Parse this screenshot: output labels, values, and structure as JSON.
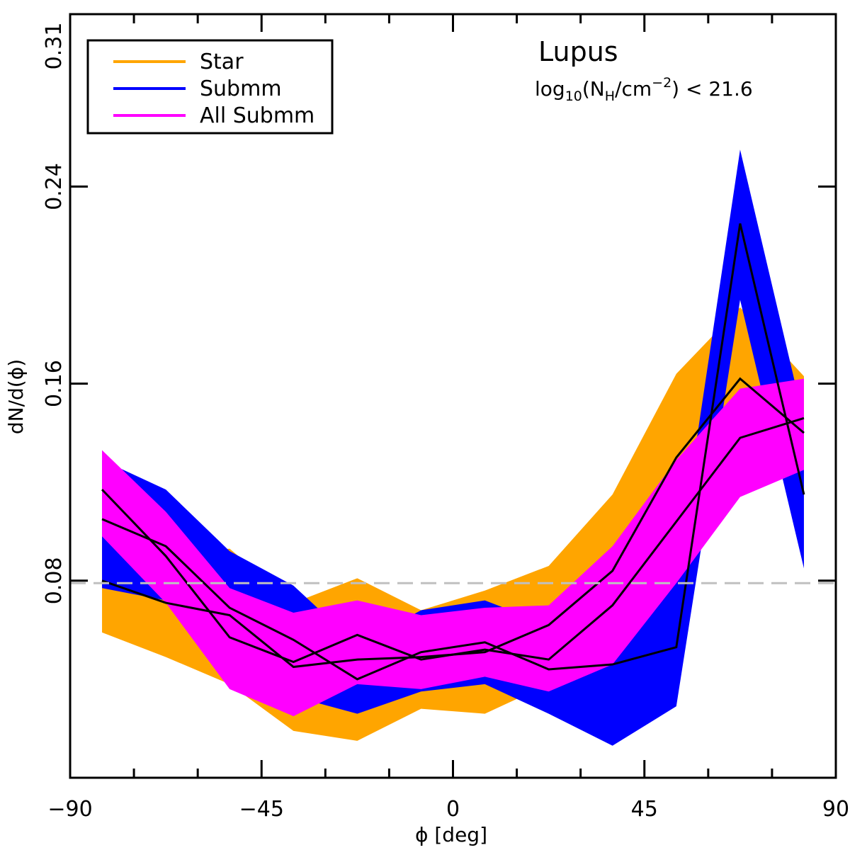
{
  "chart_data": {
    "type": "line",
    "title": "",
    "xlabel": "ϕ [deg]",
    "ylabel": "dN/d(ϕ)",
    "xlim": [
      -90,
      90
    ],
    "ylim": [
      0.0,
      0.31
    ],
    "xticks": [
      -90,
      -45,
      0,
      45,
      90
    ],
    "xtick_labels": [
      "−90",
      "−45",
      "0",
      "45",
      "90"
    ],
    "yticks": [
      0.08,
      0.16,
      0.24,
      0.31
    ],
    "ytick_labels": [
      "0.08",
      "0.16",
      "0.24",
      "0.31"
    ],
    "x": [
      -82.5,
      -67.5,
      -52.5,
      -37.5,
      -22.5,
      -7.5,
      7.5,
      22.5,
      37.5,
      52.5,
      67.5,
      82.5
    ],
    "series": [
      {
        "name": "Star",
        "color": "#FFA500",
        "values": [
          0.08,
          0.071,
          0.066,
          0.045,
          0.048,
          0.049,
          0.051,
          0.062,
          0.084,
          0.13,
          0.162,
          0.14
        ],
        "lower": [
          0.059,
          0.049,
          0.038,
          0.019,
          0.015,
          0.028,
          0.026,
          0.038,
          0.054,
          0.096,
          0.133,
          0.116
        ],
        "upper": [
          0.101,
          0.09,
          0.093,
          0.071,
          0.081,
          0.068,
          0.076,
          0.086,
          0.115,
          0.164,
          0.191,
          0.163
        ]
      },
      {
        "name": "Submm",
        "color": "#0000FF",
        "values": [
          0.105,
          0.094,
          0.069,
          0.056,
          0.04,
          0.051,
          0.055,
          0.044,
          0.046,
          0.053,
          0.225,
          0.115
        ],
        "lower": [
          0.077,
          0.072,
          0.046,
          0.033,
          0.026,
          0.035,
          0.038,
          0.026,
          0.013,
          0.029,
          0.194,
          0.085
        ],
        "upper": [
          0.129,
          0.117,
          0.092,
          0.078,
          0.054,
          0.068,
          0.072,
          0.062,
          0.078,
          0.082,
          0.255,
          0.145
        ]
      },
      {
        "name": "All Submm",
        "color": "#FF00FF",
        "values": [
          0.117,
          0.09,
          0.057,
          0.047,
          0.058,
          0.048,
          0.052,
          0.048,
          0.07,
          0.104,
          0.138,
          0.146
        ],
        "lower": [
          0.098,
          0.071,
          0.036,
          0.025,
          0.038,
          0.036,
          0.041,
          0.035,
          0.046,
          0.079,
          0.114,
          0.125
        ],
        "upper": [
          0.133,
          0.108,
          0.077,
          0.067,
          0.072,
          0.066,
          0.069,
          0.07,
          0.094,
          0.129,
          0.158,
          0.162
        ]
      }
    ],
    "reference_line": {
      "y": 0.079,
      "style": "dashed",
      "color": "#C0C0C0"
    },
    "legend": {
      "position": "top-left",
      "entries": [
        "Star",
        "Submm",
        "All Submm"
      ]
    },
    "annotations": {
      "region": "Lupus",
      "condition_prefix": "log",
      "condition_sub": "10",
      "condition_mid": "(N",
      "condition_sub2": "H",
      "condition_unit": "/cm",
      "condition_sup": "−2",
      "condition_suffix": ") < 21.6"
    }
  }
}
